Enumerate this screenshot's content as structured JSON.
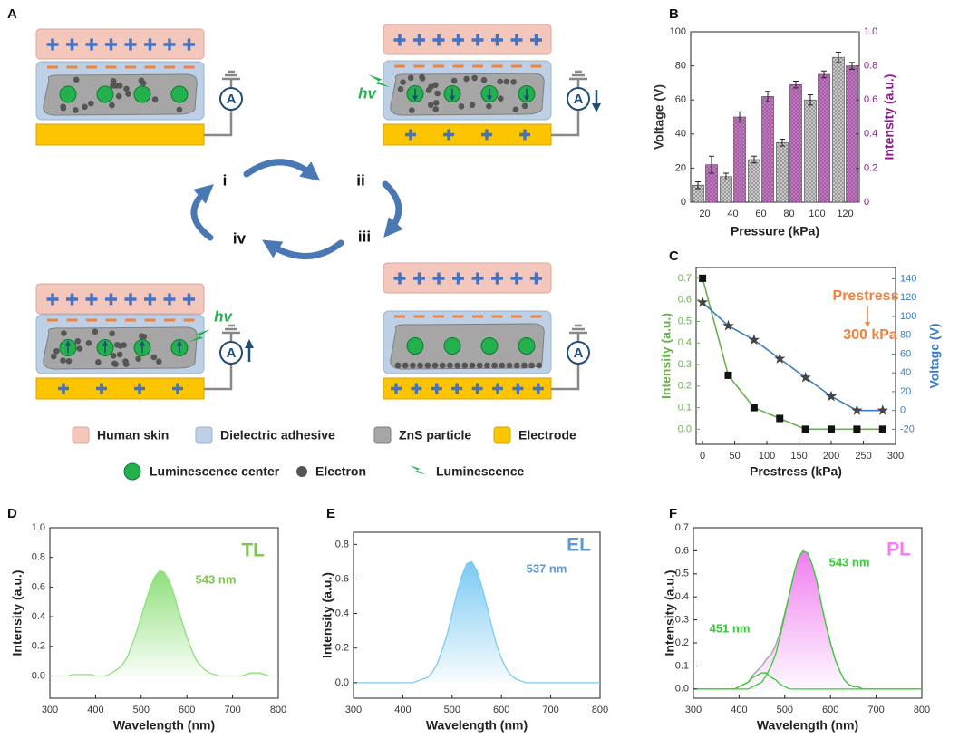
{
  "panel_labels": [
    "A",
    "B",
    "C",
    "D",
    "E",
    "F"
  ],
  "diagram": {
    "stage_labels": [
      "i",
      "ii",
      "iii",
      "iv"
    ],
    "photon_labels": [
      "hv",
      "hv"
    ],
    "ammeter_labels": [
      "A",
      "A",
      "A",
      "A"
    ],
    "legend": [
      "Human skin",
      "Dielectric adhesive",
      "ZnS particle",
      "Electrode",
      "Luminescence center",
      "Electron",
      "Luminescence"
    ]
  },
  "chart_data": [
    {
      "type": "bar",
      "xlabel": "Pressure (kPa)",
      "ylabel": "Voltage (V)",
      "y2label": "Intensity (a.u.)",
      "categories": [
        20,
        40,
        60,
        80,
        100,
        120
      ],
      "series": [
        {
          "color": "#d0d0d0",
          "hatch": true,
          "values": [
            10,
            15,
            25,
            35,
            60,
            85
          ],
          "errors": [
            2,
            2,
            2,
            2,
            3,
            3
          ]
        },
        {
          "color": "#d070d0",
          "hatch": true,
          "axis": "y2",
          "values": [
            0.22,
            0.5,
            0.62,
            0.69,
            0.75,
            0.8
          ],
          "errors": [
            0.05,
            0.03,
            0.03,
            0.02,
            0.02,
            0.02
          ]
        }
      ],
      "ylim": [
        0,
        100
      ],
      "yticks": [
        0,
        20,
        40,
        60,
        80,
        100
      ],
      "y2lim": [
        0,
        1
      ],
      "y2ticks": [
        0,
        0.2,
        0.4,
        0.6,
        0.8,
        {
          "value": 1,
          "label": "1.0"
        }
      ],
      "ycolor": "#333333",
      "y2color": "#8b1a8b"
    },
    {
      "type": "line",
      "xlabel": "Prestress (kPa)",
      "ylabel": "Intensity (a.u.)",
      "y2label": "Voltage (V)",
      "x": [
        0,
        40,
        80,
        120,
        160,
        200,
        240,
        280
      ],
      "series": [
        {
          "color": "#6ab04c",
          "marker": "square",
          "marker_color": "#111111",
          "values": [
            0.7,
            0.25,
            0.1,
            0.05,
            0,
            0,
            0,
            0
          ]
        },
        {
          "color": "#3a7dbf",
          "marker": "star",
          "marker_color": "#444444",
          "axis": "y2",
          "values": [
            115,
            90,
            75,
            55,
            35,
            15,
            0,
            0
          ]
        }
      ],
      "xlim": [
        -10,
        300
      ],
      "xticks": [
        0,
        50,
        100,
        150,
        200,
        250,
        300
      ],
      "ylim": [
        -0.07,
        0.75
      ],
      "yticks": [
        {
          "value": 0,
          "label": "0.0"
        },
        0.1,
        0.2,
        0.3,
        0.4,
        0.5,
        0.6,
        0.7
      ],
      "y2lim": [
        -36,
        152
      ],
      "y2ticks": [
        -20,
        0,
        20,
        40,
        60,
        80,
        100,
        120,
        140
      ],
      "ycolor": "#6ab04c",
      "y2color": "#3a7dbf",
      "annotations": [
        {
          "text": "Prestress",
          "color": "#f0823c"
        },
        {
          "text": "300 kPa",
          "color": "#f0823c"
        }
      ]
    },
    {
      "type": "line",
      "xlabel": "Wavelength (nm)",
      "ylabel": "Intensity (a.u.)",
      "x": [
        300,
        310,
        320,
        330,
        340,
        350,
        360,
        370,
        380,
        390,
        400,
        410,
        420,
        430,
        440,
        450,
        460,
        470,
        480,
        490,
        500,
        510,
        520,
        530,
        540,
        550,
        560,
        570,
        580,
        590,
        600,
        610,
        620,
        630,
        640,
        650,
        660,
        670,
        680,
        690,
        700,
        710,
        720,
        730,
        740,
        750,
        760,
        770,
        780,
        790,
        800
      ],
      "series": [
        {
          "color": "#8ee07a",
          "fill": "#8ee07a",
          "values": [
            0,
            0,
            0,
            0,
            0,
            0.01,
            0.01,
            0.01,
            0.01,
            0.01,
            0,
            0,
            0,
            0.01,
            0.03,
            0.05,
            0.08,
            0.13,
            0.21,
            0.3,
            0.4,
            0.5,
            0.6,
            0.67,
            0.71,
            0.7,
            0.65,
            0.57,
            0.46,
            0.36,
            0.26,
            0.18,
            0.11,
            0.07,
            0.04,
            0.02,
            0.01,
            0,
            0,
            0,
            0,
            0,
            0,
            0.01,
            0.02,
            0.02,
            0.02,
            0.01,
            0,
            0,
            0
          ]
        }
      ],
      "xlim": [
        300,
        800
      ],
      "xticks": [
        300,
        400,
        500,
        600,
        700,
        800
      ],
      "ylim": [
        -0.15,
        1
      ],
      "yticks": [
        {
          "value": 0,
          "label": "0.0"
        },
        0.2,
        0.4,
        0.6,
        0.8,
        {
          "value": 1,
          "label": "1.0"
        }
      ],
      "annotations": [
        {
          "text": "TL",
          "color": "#7ac943"
        },
        {
          "text": "543 nm",
          "color": "#7ac943"
        }
      ]
    },
    {
      "type": "line",
      "xlabel": "Wavelength (nm)",
      "ylabel": "Intensity (a.u.)",
      "x": [
        300,
        310,
        320,
        330,
        340,
        350,
        360,
        370,
        380,
        390,
        400,
        410,
        420,
        430,
        440,
        450,
        460,
        470,
        480,
        490,
        500,
        510,
        520,
        530,
        540,
        550,
        560,
        570,
        580,
        590,
        600,
        610,
        620,
        630,
        640,
        650,
        660,
        670,
        680,
        690,
        700,
        710,
        720,
        730,
        740,
        750,
        760,
        770,
        780,
        790,
        800
      ],
      "series": [
        {
          "color": "#7ccaf2",
          "fill": "#7ccaf2",
          "values": [
            0,
            0,
            0,
            0,
            0,
            0,
            0,
            0,
            0,
            0,
            0,
            0,
            0,
            0.01,
            0.02,
            0.03,
            0.06,
            0.11,
            0.19,
            0.28,
            0.4,
            0.52,
            0.62,
            0.69,
            0.7,
            0.65,
            0.56,
            0.45,
            0.33,
            0.22,
            0.14,
            0.08,
            0.04,
            0.02,
            0.01,
            0,
            0,
            0,
            0,
            0,
            0,
            0,
            0,
            0,
            0,
            0,
            0,
            0,
            0,
            0,
            0
          ]
        }
      ],
      "xlim": [
        300,
        800
      ],
      "xticks": [
        300,
        400,
        500,
        600,
        700,
        800
      ],
      "ylim": [
        -0.09,
        0.87
      ],
      "yticks": [
        {
          "value": 0,
          "label": "0.0"
        },
        0.2,
        0.4,
        0.6,
        0.8
      ],
      "annotations": [
        {
          "text": "EL",
          "color": "#5b9bd5"
        },
        {
          "text": "537 nm",
          "color": "#5b9bd5"
        }
      ]
    },
    {
      "type": "line",
      "xlabel": "Wavelength (nm)",
      "ylabel": "Intensity (a.u.)",
      "x": [
        300,
        310,
        320,
        330,
        340,
        350,
        360,
        370,
        380,
        390,
        400,
        410,
        420,
        430,
        440,
        450,
        460,
        470,
        480,
        490,
        500,
        510,
        520,
        530,
        540,
        550,
        560,
        570,
        580,
        590,
        600,
        610,
        620,
        630,
        640,
        650,
        660,
        670,
        680,
        690,
        700,
        710,
        720,
        730,
        740,
        750,
        760,
        770,
        780,
        790,
        800
      ],
      "series": [
        {
          "color": "#a0a0a0",
          "fill": "#f07ef0",
          "values": [
            0,
            0,
            0,
            0,
            0,
            0,
            0,
            0,
            0,
            0,
            0.01,
            0.02,
            0.03,
            0.06,
            0.08,
            0.1,
            0.13,
            0.15,
            0.19,
            0.25,
            0.33,
            0.41,
            0.5,
            0.57,
            0.6,
            0.59,
            0.54,
            0.47,
            0.37,
            0.28,
            0.2,
            0.13,
            0.08,
            0.04,
            0.02,
            0.01,
            0.01,
            0,
            0,
            0,
            0,
            0,
            0,
            0,
            0,
            0,
            0,
            0,
            0,
            0,
            0
          ]
        },
        {
          "color": "#33cc33",
          "values": [
            0,
            0,
            0,
            0,
            0,
            0,
            0,
            0,
            0,
            0,
            0,
            0,
            0,
            0.01,
            0.02,
            0.03,
            0.06,
            0.1,
            0.15,
            0.23,
            0.32,
            0.41,
            0.5,
            0.57,
            0.6,
            0.59,
            0.54,
            0.47,
            0.37,
            0.28,
            0.2,
            0.13,
            0.08,
            0.04,
            0.02,
            0.01,
            0.01,
            0,
            0,
            0,
            0,
            0,
            0,
            0,
            0,
            0,
            0,
            0,
            0,
            0,
            0
          ]
        },
        {
          "color": "#33cc33",
          "values": [
            0,
            0,
            0,
            0,
            0,
            0,
            0,
            0,
            0,
            0,
            0.01,
            0.02,
            0.03,
            0.05,
            0.06,
            0.07,
            0.07,
            0.05,
            0.04,
            0.02,
            0.01,
            0,
            0,
            0,
            0,
            0,
            0,
            0,
            0,
            0,
            0,
            0,
            0,
            0,
            0,
            0,
            0,
            0,
            0,
            0,
            0,
            0,
            0,
            0,
            0,
            0,
            0,
            0,
            0,
            0,
            0
          ]
        }
      ],
      "xlim": [
        300,
        800
      ],
      "xticks": [
        300,
        400,
        500,
        600,
        700,
        800
      ],
      "ylim": [
        -0.04,
        0.7
      ],
      "yticks": [
        {
          "value": 0,
          "label": "0.0"
        },
        0.1,
        0.2,
        0.3,
        0.4,
        0.5,
        0.6,
        0.7
      ],
      "annotations": [
        {
          "text": "PL",
          "color": "#f07ef0"
        },
        {
          "text": "543 nm",
          "color": "#33cc33"
        },
        {
          "text": "451 nm",
          "color": "#33cc33"
        }
      ]
    }
  ]
}
